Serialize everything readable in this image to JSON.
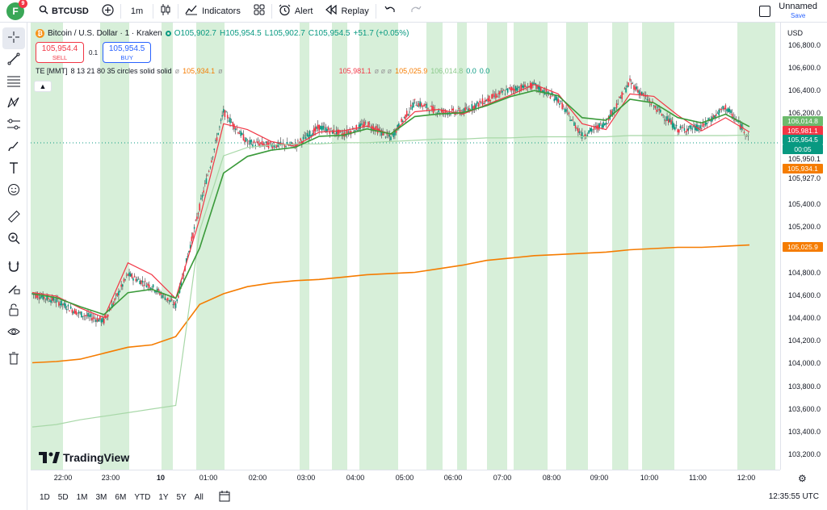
{
  "header": {
    "avatar_letter": "F",
    "notification_count": "9",
    "symbol": "BTCUSD",
    "interval": "1m",
    "indicators_label": "Indicators",
    "alert_label": "Alert",
    "replay_label": "Replay",
    "layout_name": "Unnamed",
    "save_label": "Save"
  },
  "legend": {
    "title": "Bitcoin / U.S. Dollar · 1 · Kraken",
    "open": "O105,902.7",
    "high": "H105,954.5",
    "low": "L105,902.7",
    "close": "C105,954.5",
    "change": "+51.7 (+0.05%)"
  },
  "trade": {
    "sell_price": "105,954.4",
    "sell_label": "SELL",
    "spread": "0.1",
    "buy_price": "105,954.5",
    "buy_label": "BUY"
  },
  "indicator": {
    "name": "TE [MMT]",
    "params": "8 13 21 80 35 circles solid solid",
    "v1": "105,934.1",
    "v2": "105,981.1",
    "v3": "105,025.9",
    "v4": "106,014.8",
    "v5": "0.0",
    "v6": "0.0"
  },
  "price_axis": {
    "currency": "USD",
    "labels": [
      "106,800.0",
      "106,600.0",
      "106,400.0",
      "106,200.0",
      "105,950.1",
      "105,927.0",
      "105,400.0",
      "105,200.0",
      "104,800.0",
      "104,600.0",
      "104,400.0",
      "104,200.0",
      "104,000.0",
      "103,800.0",
      "103,600.0",
      "103,400.0",
      "103,200.0"
    ],
    "tags": [
      {
        "text": "106,014.8",
        "color": "#6cba6c"
      },
      {
        "text": "105,981.1",
        "color": "#f23645"
      },
      {
        "text": "105,954.5",
        "color": "#089981"
      },
      {
        "text": "00:05",
        "color": "#089981"
      },
      {
        "text": "105,934.1",
        "color": "#f57c00"
      },
      {
        "text": "105,025.9",
        "color": "#f57c00"
      }
    ]
  },
  "time_axis": [
    "22:00",
    "23:00",
    "10",
    "01:00",
    "02:00",
    "03:00",
    "04:00",
    "05:00",
    "06:00",
    "07:00",
    "08:00",
    "09:00",
    "10:00",
    "11:00",
    "12:00"
  ],
  "ranges": [
    "1D",
    "5D",
    "1M",
    "3M",
    "6M",
    "YTD",
    "1Y",
    "5Y",
    "All"
  ],
  "clock": "12:35:55 UTC",
  "watermark": "TradingView",
  "colors": {
    "up": "#089981",
    "down": "#f23645",
    "sma_slow": "#f57c00",
    "ema_fast": "#3a9a3a",
    "ema_mid": "#e5534b",
    "background_band": "#cdebcf"
  },
  "chart_data": {
    "type": "line",
    "symbol": "BTCUSD",
    "interval": "1m",
    "ylim": [
      103100,
      106900
    ],
    "x": [
      "21:30",
      "22:00",
      "22:30",
      "23:00",
      "23:30",
      "00:00",
      "00:30",
      "01:00",
      "01:30",
      "02:00",
      "02:30",
      "03:00",
      "03:30",
      "04:00",
      "04:30",
      "05:00",
      "05:30",
      "06:00",
      "06:30",
      "07:00",
      "07:30",
      "08:00",
      "08:30",
      "09:00",
      "09:30",
      "10:00",
      "10:30",
      "11:00",
      "11:30",
      "12:00",
      "12:35"
    ],
    "series": [
      {
        "values": [
          104620,
          104560,
          104450,
          104390,
          104780,
          104680,
          104520,
          105350,
          106150,
          105890,
          105870,
          105870,
          106020,
          105960,
          106050,
          105930,
          106230,
          106150,
          106150,
          106250,
          106340,
          106370,
          106250,
          105950,
          106060,
          106400,
          106200,
          106000,
          106020,
          106190,
          105940
        ]
      },
      {
        "values": [
          104630,
          104600,
          104500,
          104420,
          104880,
          104780,
          104580,
          105250,
          106050,
          106000,
          105900,
          105860,
          105980,
          105990,
          106030,
          105960,
          106150,
          106170,
          106130,
          106210,
          106290,
          106380,
          106300,
          106050,
          106000,
          106300,
          106280,
          106120,
          105990,
          106100,
          105980
        ]
      },
      {
        "values": [
          104040,
          104050,
          104070,
          104120,
          104170,
          104190,
          104260,
          104530,
          104620,
          104680,
          104710,
          104730,
          104740,
          104760,
          104780,
          104790,
          104800,
          104830,
          104860,
          104900,
          104920,
          104940,
          104950,
          104960,
          104970,
          104990,
          105000,
          105010,
          105010,
          105020,
          105030
        ]
      },
      {
        "values": [
          103500,
          103520,
          103560,
          103590,
          103620,
          103650,
          103680,
          105150,
          105780,
          105850,
          105870,
          105880,
          105880,
          105890,
          105890,
          105900,
          105910,
          105920,
          105920,
          105930,
          105930,
          105940,
          105940,
          105940,
          105940,
          105950,
          105950,
          105950,
          105950,
          105950,
          105955
        ]
      }
    ]
  }
}
